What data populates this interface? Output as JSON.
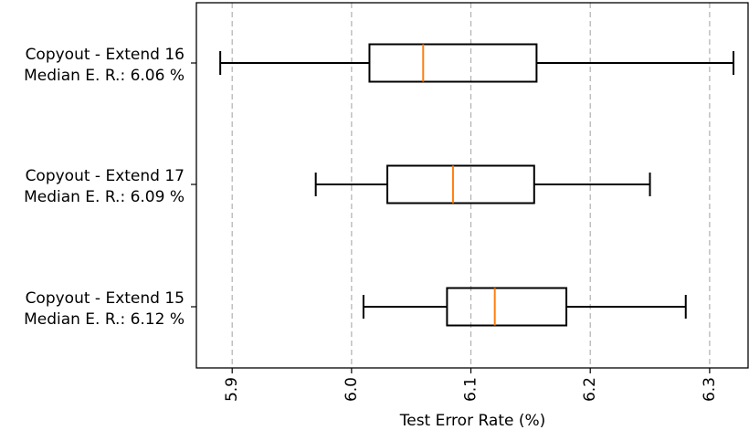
{
  "chart_data": {
    "type": "boxplot",
    "orientation": "horizontal",
    "title": "",
    "xlabel": "Test Error Rate (%)",
    "ylabel": "",
    "xlim": [
      5.87,
      6.333
    ],
    "xticks": [
      5.9,
      6.0,
      6.1,
      6.2,
      6.3
    ],
    "xtick_labels": [
      "5.9",
      "6.0",
      "6.1",
      "6.2",
      "6.3"
    ],
    "xtick_rotation": 90,
    "grid": "x-dashed",
    "box_color": "#000000",
    "median_color": "#ff7f0e",
    "grid_color": "#b0b0b0",
    "boxes": [
      {
        "label_line1": "Copyout - Extend 16",
        "label_line2": "Median E. R.: 6.06 %",
        "whisker_low": 5.89,
        "q1": 6.015,
        "median": 6.06,
        "q3": 6.155,
        "whisker_high": 6.32
      },
      {
        "label_line1": "Copyout - Extend 17",
        "label_line2": "Median E. R.: 6.09 %",
        "whisker_low": 5.97,
        "q1": 6.03,
        "median": 6.085,
        "q3": 6.153,
        "whisker_high": 6.25
      },
      {
        "label_line1": "Copyout - Extend 15",
        "label_line2": "Median E. R.: 6.12 %",
        "whisker_low": 6.01,
        "q1": 6.08,
        "median": 6.12,
        "q3": 6.18,
        "whisker_high": 6.28
      }
    ]
  }
}
